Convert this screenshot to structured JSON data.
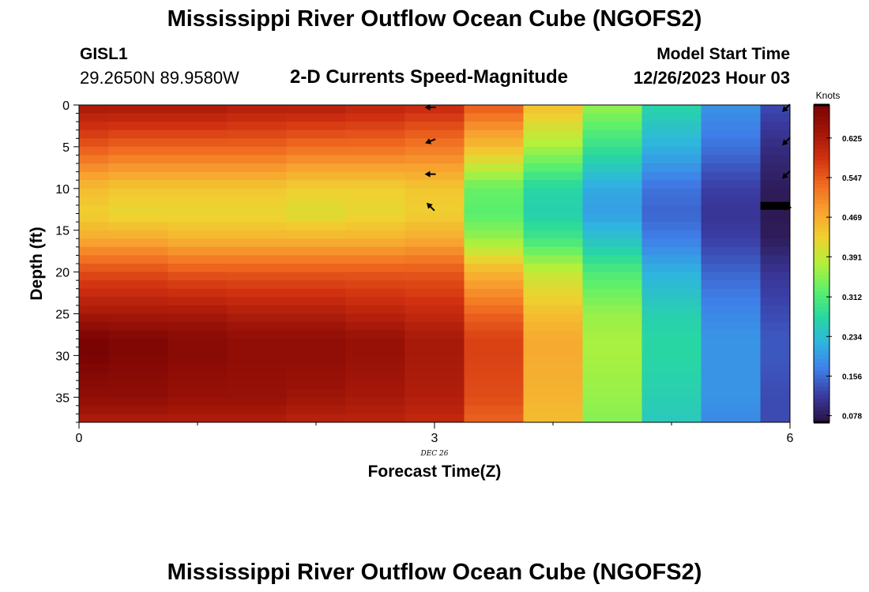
{
  "header": {
    "title": "Mississippi River Outflow Ocean Cube (NGOFS2)",
    "station": "GISL1",
    "coordinates": "29.2650N  89.9580W",
    "subtitle": "2-D Currents Speed-Magnitude",
    "model_start_label": "Model Start Time",
    "model_start_value": "12/26/2023 Hour 03"
  },
  "footer": {
    "title": "Mississippi River Outflow Ocean Cube (NGOFS2)"
  },
  "chart_data": {
    "type": "heatmap",
    "xlabel": "Forecast Time(Z)",
    "ylabel": "Depth (ft)",
    "x_ticks": [
      0,
      3,
      6
    ],
    "x_tick_labels": [
      "0",
      "3",
      "6"
    ],
    "x_date_label": "DEC 26",
    "xlim": [
      0,
      6
    ],
    "y_ticks": [
      0,
      5,
      10,
      15,
      20,
      25,
      30,
      35
    ],
    "y_tick_labels": [
      "0",
      "5",
      "10",
      "15",
      "20",
      "25",
      "30",
      "35"
    ],
    "ylim": [
      0,
      38
    ],
    "y_inverted": true,
    "colorbar": {
      "label": "Knots",
      "ticks": [
        0.078,
        0.156,
        0.234,
        0.312,
        0.391,
        0.469,
        0.547,
        0.625
      ],
      "tick_labels": [
        "0.078",
        "0.156",
        "0.234",
        "0.312",
        "0.391",
        "0.469",
        "0.547",
        "0.625"
      ],
      "range": [
        0.065,
        0.69
      ],
      "colors": [
        "#2a1140",
        "#3a3aa0",
        "#3f7ee8",
        "#2fb4e0",
        "#27d8a0",
        "#5ef06a",
        "#b4f03a",
        "#f0d030",
        "#f8a030",
        "#f06a20",
        "#d03010",
        "#a01508",
        "#7a0403"
      ]
    },
    "time_columns": [
      0,
      0.5,
      1,
      1.5,
      2,
      2.5,
      3,
      3.5,
      4,
      4.5,
      5,
      5.5,
      6
    ],
    "depth_profiles": [
      {
        "time": 0,
        "depths": [
          0,
          5,
          10,
          13,
          16,
          20,
          25,
          28,
          30,
          35,
          38
        ],
        "speeds": [
          0.63,
          0.55,
          0.45,
          0.43,
          0.47,
          0.56,
          0.63,
          0.69,
          0.69,
          0.66,
          0.62
        ]
      },
      {
        "time": 0.5,
        "depths": [
          0,
          5,
          10,
          13,
          16,
          20,
          25,
          28,
          30,
          35,
          38
        ],
        "speeds": [
          0.63,
          0.54,
          0.44,
          0.42,
          0.47,
          0.56,
          0.63,
          0.68,
          0.68,
          0.66,
          0.62
        ]
      },
      {
        "time": 1,
        "depths": [
          0,
          5,
          10,
          13,
          16,
          20,
          25,
          28,
          30,
          35,
          38
        ],
        "speeds": [
          0.63,
          0.54,
          0.44,
          0.42,
          0.46,
          0.55,
          0.63,
          0.67,
          0.67,
          0.65,
          0.62
        ]
      },
      {
        "time": 1.5,
        "depths": [
          0,
          5,
          10,
          13,
          16,
          20,
          25,
          28,
          30,
          35,
          38
        ],
        "speeds": [
          0.62,
          0.54,
          0.44,
          0.42,
          0.46,
          0.55,
          0.62,
          0.66,
          0.66,
          0.65,
          0.62
        ]
      },
      {
        "time": 2,
        "depths": [
          0,
          5,
          10,
          13,
          16,
          20,
          25,
          28,
          30,
          35,
          38
        ],
        "speeds": [
          0.62,
          0.53,
          0.43,
          0.41,
          0.46,
          0.55,
          0.62,
          0.66,
          0.66,
          0.64,
          0.61
        ]
      },
      {
        "time": 2.5,
        "depths": [
          0,
          5,
          10,
          13,
          16,
          20,
          25,
          28,
          30,
          35,
          38
        ],
        "speeds": [
          0.61,
          0.53,
          0.43,
          0.42,
          0.46,
          0.55,
          0.61,
          0.65,
          0.65,
          0.63,
          0.61
        ]
      },
      {
        "time": 3,
        "depths": [
          0,
          5,
          10,
          13,
          16,
          20,
          25,
          28,
          30,
          35,
          38
        ],
        "speeds": [
          0.6,
          0.52,
          0.44,
          0.43,
          0.47,
          0.55,
          0.6,
          0.63,
          0.63,
          0.62,
          0.6
        ]
      },
      {
        "time": 3.5,
        "depths": [
          0,
          5,
          10,
          13,
          16,
          20,
          25,
          28,
          30,
          35,
          38
        ],
        "speeds": [
          0.55,
          0.45,
          0.33,
          0.32,
          0.36,
          0.46,
          0.54,
          0.57,
          0.57,
          0.56,
          0.54
        ]
      },
      {
        "time": 4,
        "depths": [
          0,
          5,
          10,
          13,
          16,
          20,
          25,
          28,
          30,
          35,
          38
        ],
        "speeds": [
          0.45,
          0.37,
          0.27,
          0.26,
          0.3,
          0.39,
          0.45,
          0.47,
          0.47,
          0.46,
          0.45
        ]
      },
      {
        "time": 4.5,
        "depths": [
          0,
          5,
          10,
          13,
          16,
          20,
          25,
          28,
          30,
          35,
          38
        ],
        "speeds": [
          0.36,
          0.29,
          0.21,
          0.2,
          0.24,
          0.31,
          0.36,
          0.37,
          0.37,
          0.36,
          0.35
        ]
      },
      {
        "time": 5,
        "depths": [
          0,
          5,
          10,
          13,
          16,
          20,
          25,
          28,
          30,
          35,
          38
        ],
        "speeds": [
          0.27,
          0.22,
          0.16,
          0.15,
          0.17,
          0.22,
          0.26,
          0.27,
          0.27,
          0.26,
          0.25
        ]
      },
      {
        "time": 5.5,
        "depths": [
          0,
          5,
          10,
          13,
          16,
          20,
          25,
          28,
          30,
          35,
          38
        ],
        "speeds": [
          0.19,
          0.16,
          0.12,
          0.11,
          0.12,
          0.15,
          0.18,
          0.19,
          0.19,
          0.19,
          0.18
        ]
      },
      {
        "time": 6,
        "depths": [
          0,
          5,
          10,
          13,
          16,
          20,
          25,
          28,
          30,
          35,
          38
        ],
        "speeds": [
          0.13,
          0.1,
          0.08,
          0.075,
          0.08,
          0.11,
          0.13,
          0.14,
          0.14,
          0.13,
          0.13
        ]
      }
    ],
    "current_vectors": [
      {
        "time": 3,
        "depth": 0,
        "direction": "west"
      },
      {
        "time": 3,
        "depth": 4,
        "direction": "west-southwest"
      },
      {
        "time": 3,
        "depth": 8,
        "direction": "west"
      },
      {
        "time": 3,
        "depth": 12,
        "direction": "northwest"
      },
      {
        "time": 6,
        "depth": 0,
        "direction": "southwest"
      },
      {
        "time": 6,
        "depth": 4,
        "direction": "southwest"
      },
      {
        "time": 6,
        "depth": 8,
        "direction": "southwest"
      },
      {
        "time": 6,
        "depth": 12,
        "direction": "west"
      }
    ]
  }
}
